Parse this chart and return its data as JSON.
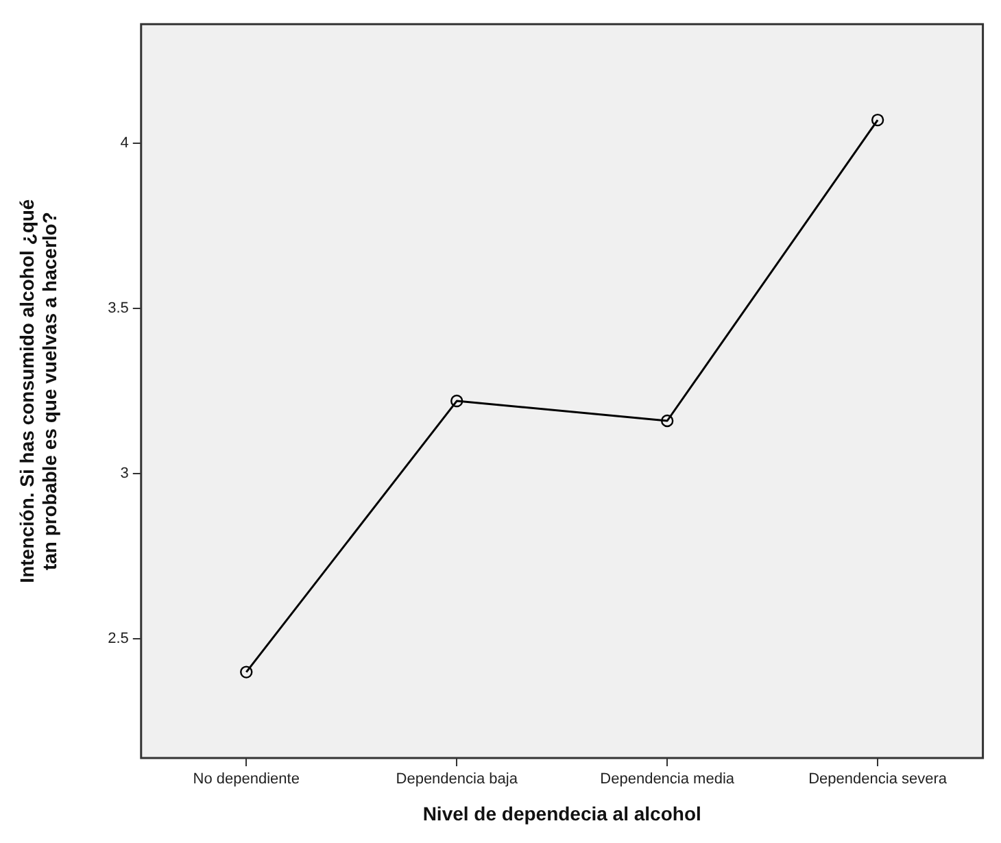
{
  "chart_data": {
    "type": "line",
    "xlabel": "Nivel de dependecia al alcohol",
    "ylabel": "Intención. Si has consumido alcohol ¿qué tan probable es que vuelvas a hacerlo?",
    "categories": [
      "No dependiente",
      "Dependencia baja",
      "Dependencia media",
      "Dependencia severa"
    ],
    "series": [
      {
        "color": "#000000",
        "values": [
          2.4,
          3.22,
          3.16,
          4.07
        ]
      }
    ],
    "ylim": [
      2.14,
      4.36
    ],
    "yticks": [
      2.5,
      3,
      3.5,
      4
    ],
    "grid": false,
    "legend": false,
    "marker": "circle",
    "line_style": "solid"
  }
}
